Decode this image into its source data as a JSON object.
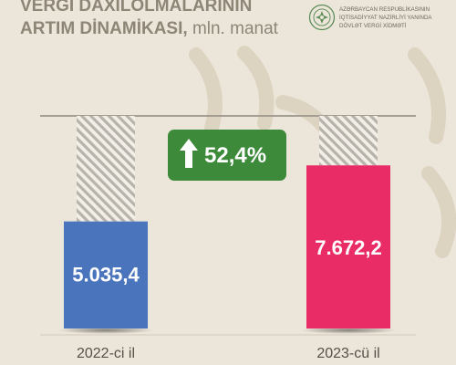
{
  "header": {
    "title_line1": "VERGİ DAXİLOLMALARININ",
    "title_line2": "ARTIM DİNAMİKASI,",
    "title_unit": "mln. manat"
  },
  "organization": {
    "line1": "AZƏRBAYCAN RESPUBLİKASININ",
    "line2": "İQTİSADİYYAT NAZİRLİYİ YANINDA",
    "line3": "DÖVLƏT VERGİ XİDMƏTİ"
  },
  "badge": {
    "label": "52,4%",
    "color": "#3c8a3a",
    "icon": "arrow-up-icon"
  },
  "chart_data": {
    "type": "bar",
    "title": "VERGİ DAXİLOLMALARININ ARTIM DİNAMİKASI, mln. manat",
    "categories": [
      "2022-ci il",
      "2023-cü il"
    ],
    "values": [
      5035.4,
      7672.2
    ],
    "value_labels": [
      "5.035,4",
      "7.672,2"
    ],
    "colors": [
      "#4a74bb",
      "#ea2c66"
    ],
    "ylim": [
      0,
      10000
    ],
    "grid": false,
    "legend": "none"
  }
}
